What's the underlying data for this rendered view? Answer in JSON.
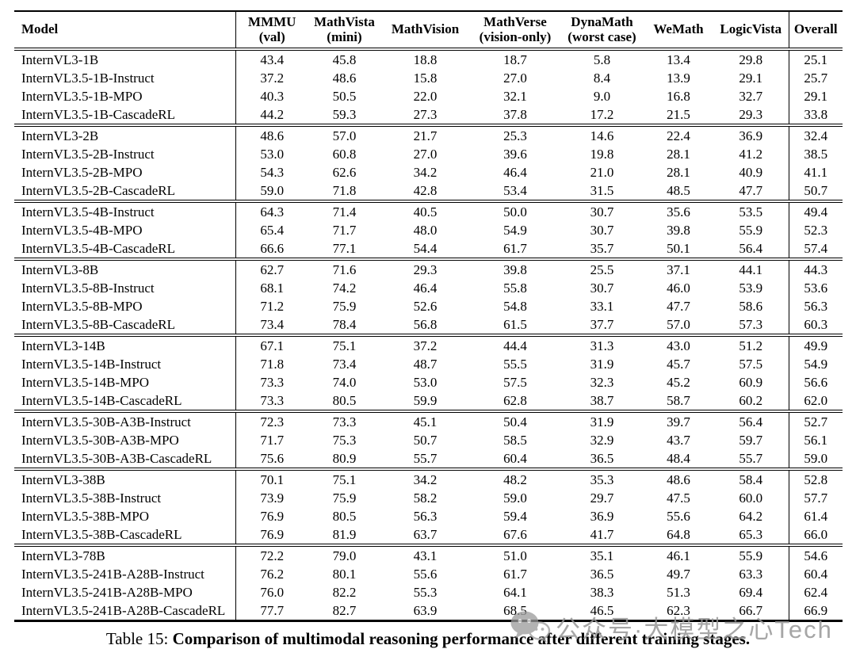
{
  "table": {
    "columns": [
      {
        "label": "Model",
        "sub": ""
      },
      {
        "label": "MMMU",
        "sub": "(val)"
      },
      {
        "label": "MathVista",
        "sub": "(mini)"
      },
      {
        "label": "MathVision",
        "sub": ""
      },
      {
        "label": "MathVerse",
        "sub": "(vision-only)"
      },
      {
        "label": "DynaMath",
        "sub": "(worst case)"
      },
      {
        "label": "WeMath",
        "sub": ""
      },
      {
        "label": "LogicVista",
        "sub": ""
      },
      {
        "label": "Overall",
        "sub": ""
      }
    ],
    "groups": [
      {
        "rows": [
          [
            "InternVL3-1B",
            "43.4",
            "45.8",
            "18.8",
            "18.7",
            "5.8",
            "13.4",
            "29.8",
            "25.1"
          ],
          [
            "InternVL3.5-1B-Instruct",
            "37.2",
            "48.6",
            "15.8",
            "27.0",
            "8.4",
            "13.9",
            "29.1",
            "25.7"
          ],
          [
            "InternVL3.5-1B-MPO",
            "40.3",
            "50.5",
            "22.0",
            "32.1",
            "9.0",
            "16.8",
            "32.7",
            "29.1"
          ],
          [
            "InternVL3.5-1B-CascadeRL",
            "44.2",
            "59.3",
            "27.3",
            "37.8",
            "17.2",
            "21.5",
            "29.3",
            "33.8"
          ]
        ]
      },
      {
        "rows": [
          [
            "InternVL3-2B",
            "48.6",
            "57.0",
            "21.7",
            "25.3",
            "14.6",
            "22.4",
            "36.9",
            "32.4"
          ],
          [
            "InternVL3.5-2B-Instruct",
            "53.0",
            "60.8",
            "27.0",
            "39.6",
            "19.8",
            "28.1",
            "41.2",
            "38.5"
          ],
          [
            "InternVL3.5-2B-MPO",
            "54.3",
            "62.6",
            "34.2",
            "46.4",
            "21.0",
            "28.1",
            "40.9",
            "41.1"
          ],
          [
            "InternVL3.5-2B-CascadeRL",
            "59.0",
            "71.8",
            "42.8",
            "53.4",
            "31.5",
            "48.5",
            "47.7",
            "50.7"
          ]
        ]
      },
      {
        "rows": [
          [
            "InternVL3.5-4B-Instruct",
            "64.3",
            "71.4",
            "40.5",
            "50.0",
            "30.7",
            "35.6",
            "53.5",
            "49.4"
          ],
          [
            "InternVL3.5-4B-MPO",
            "65.4",
            "71.7",
            "48.0",
            "54.9",
            "30.7",
            "39.8",
            "55.9",
            "52.3"
          ],
          [
            "InternVL3.5-4B-CascadeRL",
            "66.6",
            "77.1",
            "54.4",
            "61.7",
            "35.7",
            "50.1",
            "56.4",
            "57.4"
          ]
        ]
      },
      {
        "rows": [
          [
            "InternVL3-8B",
            "62.7",
            "71.6",
            "29.3",
            "39.8",
            "25.5",
            "37.1",
            "44.1",
            "44.3"
          ],
          [
            "InternVL3.5-8B-Instruct",
            "68.1",
            "74.2",
            "46.4",
            "55.8",
            "30.7",
            "46.0",
            "53.9",
            "53.6"
          ],
          [
            "InternVL3.5-8B-MPO",
            "71.2",
            "75.9",
            "52.6",
            "54.8",
            "33.1",
            "47.7",
            "58.6",
            "56.3"
          ],
          [
            "InternVL3.5-8B-CascadeRL",
            "73.4",
            "78.4",
            "56.8",
            "61.5",
            "37.7",
            "57.0",
            "57.3",
            "60.3"
          ]
        ]
      },
      {
        "rows": [
          [
            "InternVL3-14B",
            "67.1",
            "75.1",
            "37.2",
            "44.4",
            "31.3",
            "43.0",
            "51.2",
            "49.9"
          ],
          [
            "InternVL3.5-14B-Instruct",
            "71.8",
            "73.4",
            "48.7",
            "55.5",
            "31.9",
            "45.7",
            "57.5",
            "54.9"
          ],
          [
            "InternVL3.5-14B-MPO",
            "73.3",
            "74.0",
            "53.0",
            "57.5",
            "32.3",
            "45.2",
            "60.9",
            "56.6"
          ],
          [
            "InternVL3.5-14B-CascadeRL",
            "73.3",
            "80.5",
            "59.9",
            "62.8",
            "38.7",
            "58.7",
            "60.2",
            "62.0"
          ]
        ]
      },
      {
        "rows": [
          [
            "InternVL3.5-30B-A3B-Instruct",
            "72.3",
            "73.3",
            "45.1",
            "50.4",
            "31.9",
            "39.7",
            "56.4",
            "52.7"
          ],
          [
            "InternVL3.5-30B-A3B-MPO",
            "71.7",
            "75.3",
            "50.7",
            "58.5",
            "32.9",
            "43.7",
            "59.7",
            "56.1"
          ],
          [
            "InternVL3.5-30B-A3B-CascadeRL",
            "75.6",
            "80.9",
            "55.7",
            "60.4",
            "36.5",
            "48.4",
            "55.7",
            "59.0"
          ]
        ]
      },
      {
        "rows": [
          [
            "InternVL3-38B",
            "70.1",
            "75.1",
            "34.2",
            "48.2",
            "35.3",
            "48.6",
            "58.4",
            "52.8"
          ],
          [
            "InternVL3.5-38B-Instruct",
            "73.9",
            "75.9",
            "58.2",
            "59.0",
            "29.7",
            "47.5",
            "60.0",
            "57.7"
          ],
          [
            "InternVL3.5-38B-MPO",
            "76.9",
            "80.5",
            "56.3",
            "59.4",
            "36.9",
            "55.6",
            "64.2",
            "61.4"
          ],
          [
            "InternVL3.5-38B-CascadeRL",
            "76.9",
            "81.9",
            "63.7",
            "67.6",
            "41.7",
            "64.8",
            "65.3",
            "66.0"
          ]
        ]
      },
      {
        "rows": [
          [
            "InternVL3-78B",
            "72.2",
            "79.0",
            "43.1",
            "51.0",
            "35.1",
            "46.1",
            "55.9",
            "54.6"
          ],
          [
            "InternVL3.5-241B-A28B-Instruct",
            "76.2",
            "80.1",
            "55.6",
            "61.7",
            "36.5",
            "49.7",
            "63.3",
            "60.4"
          ],
          [
            "InternVL3.5-241B-A28B-MPO",
            "76.0",
            "82.2",
            "55.3",
            "64.1",
            "38.3",
            "51.3",
            "69.4",
            "62.4"
          ],
          [
            "InternVL3.5-241B-A28B-CascadeRL",
            "77.7",
            "82.7",
            "63.9",
            "68.5",
            "46.5",
            "62.3",
            "66.7",
            "66.9"
          ]
        ]
      }
    ]
  },
  "caption": {
    "prefix": "Table 15: ",
    "text": "Comparison of multimodal reasoning performance after different training stages."
  },
  "watermark": {
    "icon": "wechat-icon",
    "text": "公众号·大模型之心Tech",
    "color": "#969696"
  }
}
